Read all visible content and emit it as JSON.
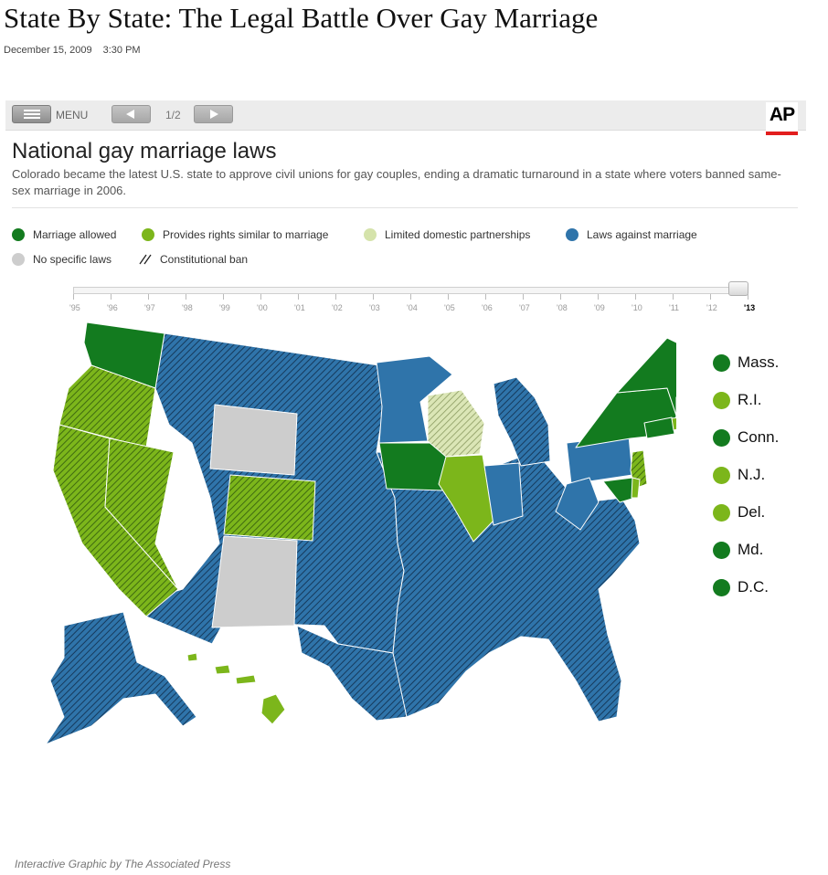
{
  "title": "State By State: The Legal Battle Over Gay Marriage",
  "date": "December 15, 2009",
  "time": "3:30 PM",
  "toolbar": {
    "menu_label": "MENU",
    "page_count": "1/2",
    "logo": "AP"
  },
  "section": {
    "title": "National gay marriage laws",
    "description": "Colorado became the latest U.S. state to approve civil unions for gay couples, ending a dramatic turnaround in a state where voters banned same-sex marriage in 2006."
  },
  "colors": {
    "marriage": "#137b1f",
    "similar": "#7cb61b",
    "limited": "#d5e3ab",
    "against": "#2f74aa",
    "none": "#cdcdcd"
  },
  "legend": [
    {
      "label": "Marriage allowed",
      "category": "marriage"
    },
    {
      "label": "Provides rights similar to marriage",
      "category": "similar"
    },
    {
      "label": "Limited domestic partnerships",
      "category": "limited"
    },
    {
      "label": "Laws against marriage",
      "category": "against"
    },
    {
      "label": "No specific laws",
      "category": "none"
    },
    {
      "label": "Constitutional ban",
      "category": "hatch"
    }
  ],
  "timeline": {
    "years": [
      "'95",
      "'96",
      "'97",
      "'98",
      "'99",
      "'00",
      "'01",
      "'02",
      "'03",
      "'04",
      "'05",
      "'06",
      "'07",
      "'08",
      "'09",
      "'10",
      "'11",
      "'12",
      "'13"
    ],
    "selected": "'13"
  },
  "small_states": [
    {
      "label": "Mass.",
      "category": "marriage"
    },
    {
      "label": "R.I.",
      "category": "similar"
    },
    {
      "label": "Conn.",
      "category": "marriage"
    },
    {
      "label": "N.J.",
      "category": "similar"
    },
    {
      "label": "Del.",
      "category": "similar"
    },
    {
      "label": "Md.",
      "category": "marriage"
    },
    {
      "label": "D.C.",
      "category": "marriage"
    }
  ],
  "credit": "Interactive Graphic by The Associated Press"
}
